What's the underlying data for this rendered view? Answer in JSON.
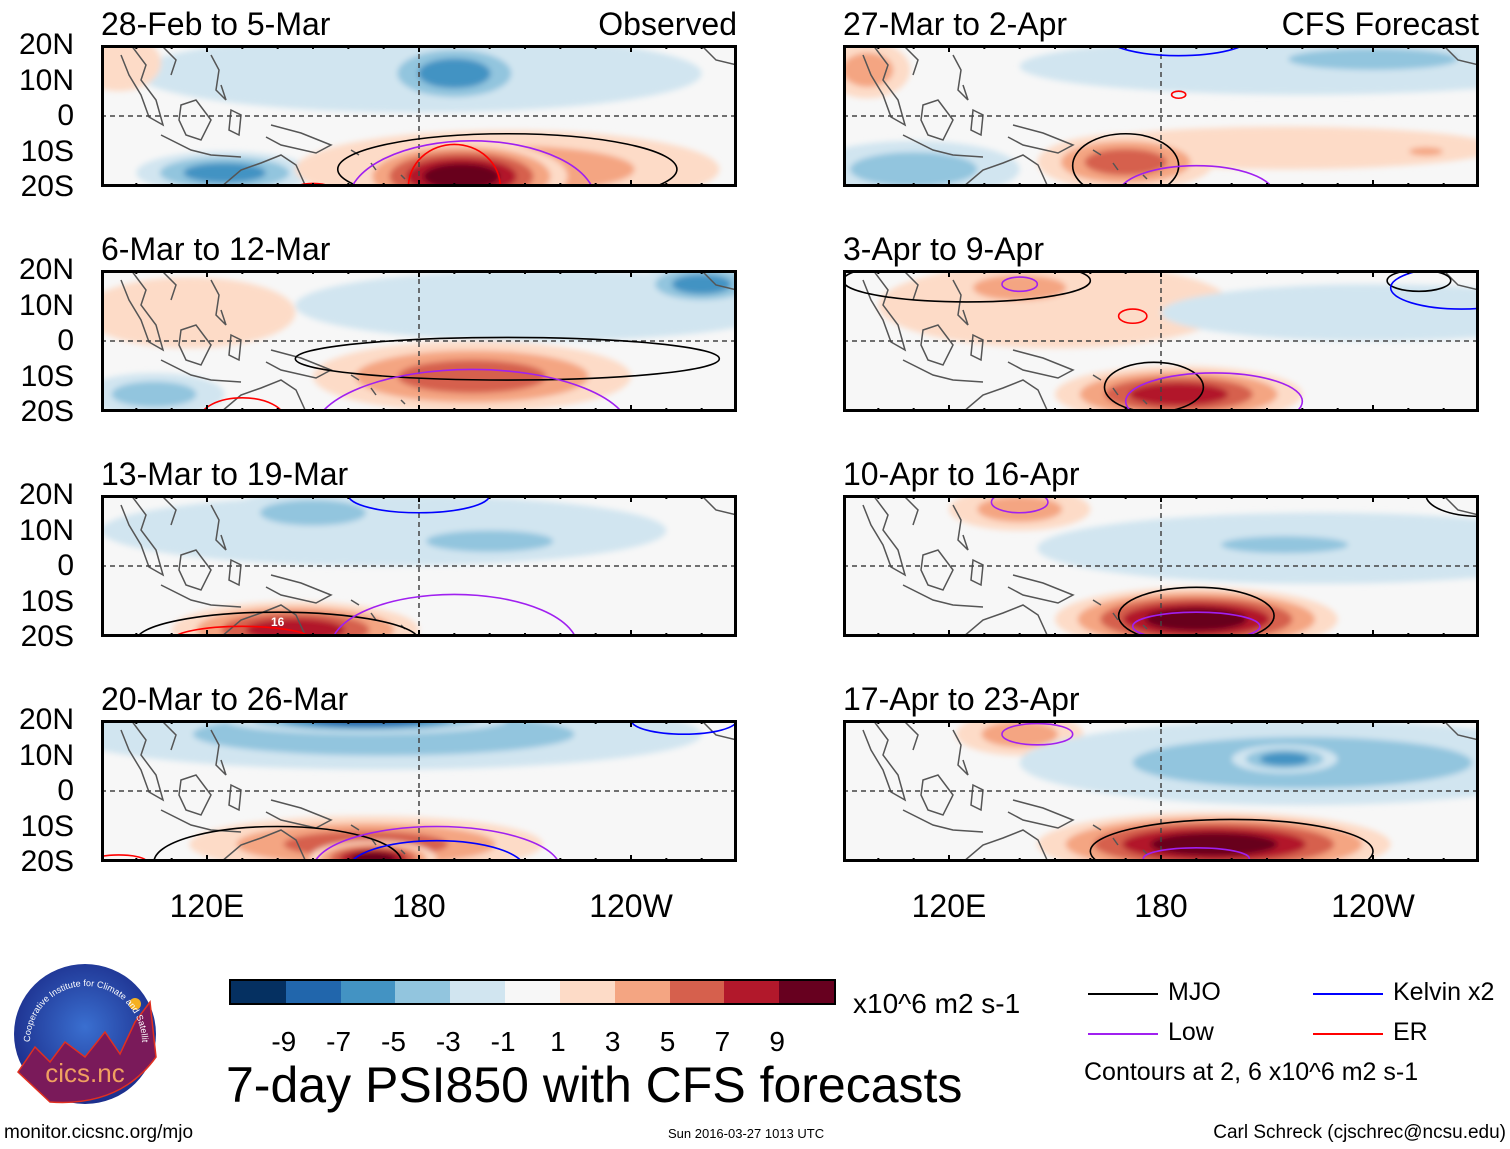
{
  "header": {
    "observed_label": "Observed",
    "forecast_label": "CFS Forecast"
  },
  "axes": {
    "lat_labels": [
      "20N",
      "10N",
      "0",
      "10S",
      "20S"
    ],
    "lon_labels": [
      "120E",
      "180",
      "120W"
    ]
  },
  "colorbar": {
    "colors": [
      "#053061",
      "#2166ac",
      "#4393c3",
      "#92c5de",
      "#d1e5f0",
      "#f7f7f7",
      "#fddbc7",
      "#f4a582",
      "#d6604d",
      "#b2182b",
      "#67001f"
    ],
    "labels": [
      "-9",
      "-7",
      "-5",
      "-3",
      "-1",
      "1",
      "3",
      "5",
      "7",
      "9"
    ],
    "units": "x10^6 m2 s-1"
  },
  "legend": {
    "items": [
      {
        "label": "MJO",
        "color": "#000000"
      },
      {
        "label": "Kelvin x2",
        "color": "#0000ff"
      },
      {
        "label": "Low",
        "color": "#a020f0"
      },
      {
        "label": "ER",
        "color": "#ff0000"
      }
    ],
    "contours_note": "Contours at 2, 6 x10^6 m2 s-1"
  },
  "footer": {
    "title": "7-day PSI850 with CFS forecasts",
    "url": "monitor.cicsnc.org/mjo",
    "timestamp": "Sun 2016-03-27 1013 UTC",
    "author": "Carl Schreck (cjschrec@ncsu.edu)",
    "logo_text": "cics.nc",
    "logo_ring_text": "Cooperative Institute for Climate and Satellites"
  },
  "chart_data": {
    "type": "heatmap",
    "lon_range": [
      90,
      270
    ],
    "lat_range": [
      -20,
      20
    ],
    "panels": [
      {
        "title": "28-Feb to 5-Mar",
        "kind": "observed",
        "blobs": [
          {
            "lon": 180,
            "lat": 12,
            "dlon": 80,
            "dlat": 11,
            "peak": -1
          },
          {
            "lon": 190,
            "lat": 12,
            "dlon": 22,
            "dlat": 9,
            "peak": -5
          },
          {
            "lon": 125,
            "lat": -16,
            "dlon": 25,
            "dlat": 6,
            "peak": -5
          },
          {
            "lon": 95,
            "lat": 15,
            "dlon": 12,
            "dlat": 8,
            "peak": 1
          },
          {
            "lon": 205,
            "lat": -15,
            "dlon": 60,
            "dlat": 11,
            "peak": 3
          },
          {
            "lon": 192,
            "lat": -17,
            "dlon": 30,
            "dlat": 10,
            "peak": 9
          }
        ],
        "contours": [
          {
            "type": "MJO",
            "lon": 205,
            "lat": -15,
            "dlon": 48,
            "dlat": 10
          },
          {
            "type": "Low",
            "lon": 195,
            "lat": -24,
            "dlon": 35,
            "dlat": 17
          },
          {
            "type": "ER",
            "lon": 150,
            "lat": -22,
            "dlon": 7,
            "dlat": 3
          },
          {
            "type": "ER",
            "lon": 190,
            "lat": -20,
            "dlon": 13,
            "dlat": 12
          }
        ]
      },
      {
        "title": "27-Mar to 2-Apr",
        "kind": "forecast",
        "blobs": [
          {
            "lon": 220,
            "lat": 14,
            "dlon": 80,
            "dlat": 8,
            "peak": -1
          },
          {
            "lon": 240,
            "lat": 16,
            "dlon": 40,
            "dlat": 5,
            "peak": -3
          },
          {
            "lon": 110,
            "lat": -15,
            "dlon": 30,
            "dlat": 8,
            "peak": -3
          },
          {
            "lon": 97,
            "lat": 13,
            "dlon": 12,
            "dlat": 8,
            "peak": 3
          },
          {
            "lon": 215,
            "lat": -9,
            "dlon": 60,
            "dlat": 6,
            "peak": 1
          },
          {
            "lon": 170,
            "lat": -13,
            "dlon": 25,
            "dlat": 8,
            "peak": 5
          },
          {
            "lon": 255,
            "lat": -10,
            "dlon": 8,
            "dlat": 2,
            "peak": 3
          }
        ],
        "contours": [
          {
            "type": "Kelvin",
            "lon": 185,
            "lat": 22,
            "dlon": 20,
            "dlat": 5
          },
          {
            "type": "ER",
            "lon": 185,
            "lat": 6,
            "dlon": 2,
            "dlat": 1
          },
          {
            "type": "MJO",
            "lon": 170,
            "lat": -14,
            "dlon": 15,
            "dlat": 9
          },
          {
            "type": "Low",
            "lon": 190,
            "lat": -22,
            "dlon": 22,
            "dlat": 8
          },
          {
            "type": "Kelvin",
            "lon": 262,
            "lat": -22,
            "dlon": 8,
            "dlat": 2
          }
        ]
      },
      {
        "title": "6-Mar to 12-Mar",
        "kind": "observed",
        "blobs": [
          {
            "lon": 215,
            "lat": 10,
            "dlon": 70,
            "dlat": 10,
            "peak": -1
          },
          {
            "lon": 260,
            "lat": 16,
            "dlon": 18,
            "dlat": 6,
            "peak": -5
          },
          {
            "lon": 115,
            "lat": 8,
            "dlon": 30,
            "dlat": 10,
            "peak": 1
          },
          {
            "lon": 105,
            "lat": -15,
            "dlon": 20,
            "dlat": 6,
            "peak": -3
          },
          {
            "lon": 195,
            "lat": -10,
            "dlon": 45,
            "dlat": 10,
            "peak": 5
          }
        ],
        "contours": [
          {
            "type": "MJO",
            "lon": 205,
            "lat": -5,
            "dlon": 60,
            "dlat": 6
          },
          {
            "type": "Low",
            "lon": 195,
            "lat": -26,
            "dlon": 45,
            "dlat": 18
          },
          {
            "type": "ER",
            "lon": 130,
            "lat": -22,
            "dlon": 12,
            "dlat": 6
          }
        ]
      },
      {
        "title": "3-Apr to 9-Apr",
        "kind": "forecast",
        "blobs": [
          {
            "lon": 150,
            "lat": 10,
            "dlon": 50,
            "dlat": 12,
            "peak": 1
          },
          {
            "lon": 140,
            "lat": 15,
            "dlon": 22,
            "dlat": 6,
            "peak": 3
          },
          {
            "lon": 240,
            "lat": 8,
            "dlon": 60,
            "dlat": 8,
            "peak": -1
          },
          {
            "lon": 185,
            "lat": -15,
            "dlon": 35,
            "dlat": 8,
            "peak": 7
          }
        ],
        "contours": [
          {
            "type": "MJO",
            "lon": 125,
            "lat": 17,
            "dlon": 35,
            "dlat": 6
          },
          {
            "type": "Low",
            "lon": 140,
            "lat": 16,
            "dlon": 5,
            "dlat": 2
          },
          {
            "type": "ER",
            "lon": 172,
            "lat": 7,
            "dlon": 4,
            "dlat": 2
          },
          {
            "type": "MJO",
            "lon": 253,
            "lat": 17,
            "dlon": 9,
            "dlat": 3
          },
          {
            "type": "Kelvin",
            "lon": 265,
            "lat": 15,
            "dlon": 20,
            "dlat": 6
          },
          {
            "type": "MJO",
            "lon": 178,
            "lat": -13,
            "dlon": 14,
            "dlat": 7
          },
          {
            "type": "Low",
            "lon": 195,
            "lat": -17,
            "dlon": 25,
            "dlat": 8
          }
        ]
      },
      {
        "title": "13-Mar to 19-Mar",
        "kind": "observed",
        "blobs": [
          {
            "lon": 170,
            "lat": 10,
            "dlon": 80,
            "dlat": 10,
            "peak": -1
          },
          {
            "lon": 150,
            "lat": 15,
            "dlon": 25,
            "dlat": 6,
            "peak": -3
          },
          {
            "lon": 200,
            "lat": 7,
            "dlon": 30,
            "dlat": 5,
            "peak": -3
          },
          {
            "lon": 145,
            "lat": -18,
            "dlon": 35,
            "dlat": 8,
            "peak": 7
          }
        ],
        "contours": [
          {
            "type": "Kelvin",
            "lon": 180,
            "lat": 20,
            "dlon": 20,
            "dlat": 5
          },
          {
            "type": "MJO",
            "lon": 140,
            "lat": -21,
            "dlon": 40,
            "dlat": 8
          },
          {
            "type": "Low",
            "lon": 190,
            "lat": -23,
            "dlon": 35,
            "dlat": 15
          },
          {
            "type": "ER",
            "lon": 130,
            "lat": -21,
            "dlon": 20,
            "dlat": 4
          }
        ],
        "annotation": "16"
      },
      {
        "title": "10-Apr to 16-Apr",
        "kind": "forecast",
        "blobs": [
          {
            "lon": 140,
            "lat": 16,
            "dlon": 20,
            "dlat": 6,
            "peak": 3
          },
          {
            "lon": 225,
            "lat": 5,
            "dlon": 80,
            "dlat": 10,
            "peak": -1
          },
          {
            "lon": 215,
            "lat": 6,
            "dlon": 30,
            "dlat": 4,
            "peak": -3
          },
          {
            "lon": 190,
            "lat": -15,
            "dlon": 40,
            "dlat": 9,
            "peak": 9
          }
        ],
        "contours": [
          {
            "type": "MJO",
            "lon": 190,
            "lat": -14,
            "dlon": 22,
            "dlat": 8
          },
          {
            "type": "Low",
            "lon": 190,
            "lat": -17,
            "dlon": 18,
            "dlat": 4
          },
          {
            "type": "MJO",
            "lon": 270,
            "lat": 20,
            "dlon": 15,
            "dlat": 6
          },
          {
            "type": "Low",
            "lon": 140,
            "lat": 18,
            "dlon": 8,
            "dlat": 3
          }
        ]
      },
      {
        "title": "20-Mar to 26-Mar",
        "kind": "observed",
        "blobs": [
          {
            "lon": 170,
            "lat": 16,
            "dlon": 90,
            "dlat": 10,
            "peak": -3
          },
          {
            "lon": 165,
            "lat": 20,
            "dlon": 40,
            "dlat": 4,
            "peak": -7
          },
          {
            "lon": 165,
            "lat": -15,
            "dlon": 50,
            "dlat": 8,
            "peak": 5
          },
          {
            "lon": 167,
            "lat": -19,
            "dlon": 18,
            "dlat": 5,
            "peak": 9
          }
        ],
        "contours": [
          {
            "type": "MJO",
            "lon": 140,
            "lat": -20,
            "dlon": 35,
            "dlat": 10
          },
          {
            "type": "Low",
            "lon": 185,
            "lat": -22,
            "dlon": 35,
            "dlat": 12
          },
          {
            "type": "Kelvin",
            "lon": 185,
            "lat": -22,
            "dlon": 25,
            "dlat": 8
          },
          {
            "type": "ER",
            "lon": 95,
            "lat": -20,
            "dlon": 8,
            "dlat": 2
          },
          {
            "type": "Kelvin",
            "lon": 255,
            "lat": 20,
            "dlon": 15,
            "dlat": 4
          }
        ]
      },
      {
        "title": "17-Apr to 23-Apr",
        "kind": "forecast",
        "blobs": [
          {
            "lon": 140,
            "lat": 16,
            "dlon": 18,
            "dlat": 6,
            "peak": 3
          },
          {
            "lon": 220,
            "lat": 8,
            "dlon": 80,
            "dlat": 12,
            "peak": -3
          },
          {
            "lon": 215,
            "lat": 9,
            "dlon": 15,
            "dlat": 4,
            "peak": -5
          },
          {
            "lon": 195,
            "lat": -15,
            "dlon": 50,
            "dlat": 9,
            "peak": 9
          }
        ],
        "contours": [
          {
            "type": "MJO",
            "lon": 200,
            "lat": -17,
            "dlon": 40,
            "dlat": 9
          },
          {
            "type": "Low",
            "lon": 190,
            "lat": -19,
            "dlon": 15,
            "dlat": 3
          },
          {
            "type": "Low",
            "lon": 145,
            "lat": 16,
            "dlon": 10,
            "dlat": 3
          }
        ]
      }
    ]
  }
}
